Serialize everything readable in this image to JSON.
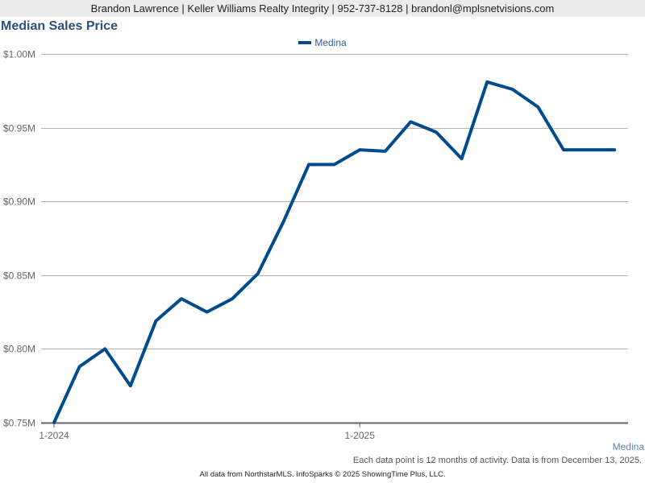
{
  "header": {
    "contact_line": "Brandon Lawrence | Keller Williams Realty Integrity | 952-737-8128 | brandonl@mplsnetvisions.com"
  },
  "chart_title": "Median Sales Price",
  "legend": {
    "items": [
      {
        "label": "Medina",
        "color": "#004b8d"
      }
    ]
  },
  "series_label": "Medina",
  "note": "Each data point is 12 months of activity. Data is from December 13, 2025.",
  "footer": "All data from NorthstarMLS. InfoSparks © 2025 ShowingTime Plus, LLC.",
  "colors": {
    "line": "#004b8d",
    "grid": "#b3b3b3",
    "axis": "#666666",
    "title": "#2d5079"
  },
  "chart_data": {
    "type": "line",
    "title": "Median Sales Price",
    "xlabel": "",
    "ylabel": "",
    "ylim": [
      0.75,
      1.0
    ],
    "y_ticks": [
      "$0.75M",
      "$0.80M",
      "$0.85M",
      "$0.90M",
      "$0.95M",
      "$1.00M"
    ],
    "y_tick_values": [
      0.75,
      0.8,
      0.85,
      0.9,
      0.95,
      1.0
    ],
    "x_tick_labels": [
      "1-2024",
      "1-2025"
    ],
    "grid": true,
    "legend_position": "top",
    "x": [
      "1-2024",
      "2-2024",
      "3-2024",
      "4-2024",
      "5-2024",
      "6-2024",
      "7-2024",
      "8-2024",
      "9-2024",
      "10-2024",
      "11-2024",
      "12-2024",
      "1-2025",
      "2-2025",
      "3-2025",
      "4-2025",
      "5-2025",
      "6-2025",
      "7-2025",
      "8-2025",
      "9-2025",
      "10-2025",
      "11-2025"
    ],
    "series": [
      {
        "name": "Medina",
        "values": [
          0.75,
          0.788,
          0.8,
          0.775,
          0.819,
          0.834,
          0.825,
          0.834,
          0.851,
          0.886,
          0.925,
          0.925,
          0.935,
          0.934,
          0.954,
          0.947,
          0.929,
          0.981,
          0.976,
          0.964,
          0.935,
          0.935,
          0.935
        ]
      }
    ],
    "unit": "$M"
  }
}
